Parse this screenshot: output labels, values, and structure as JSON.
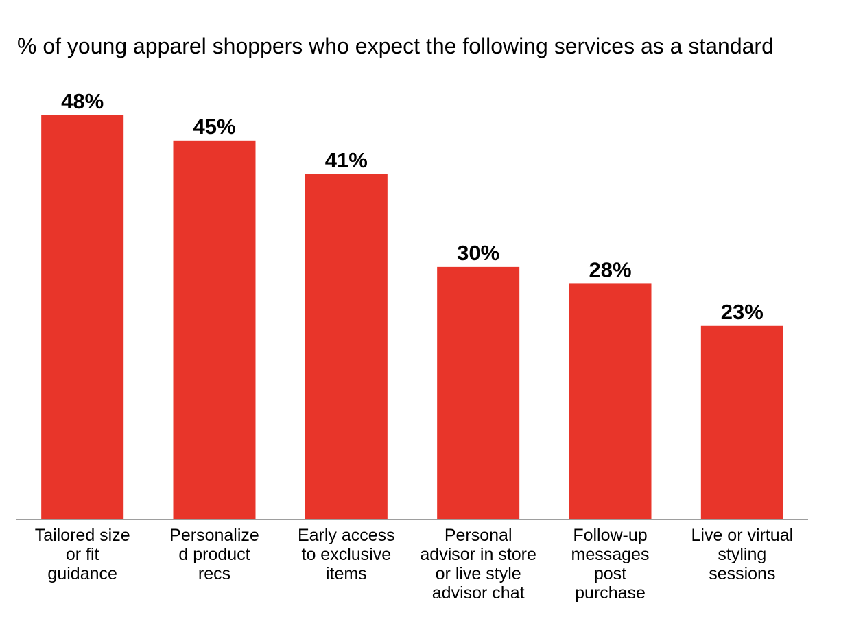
{
  "chart_data": {
    "type": "bar",
    "title": "% of young apparel shoppers who expect the following services as a standard",
    "categories": [
      [
        "Tailored size",
        "or fit",
        "guidance"
      ],
      [
        "Personalize",
        "d product",
        "recs"
      ],
      [
        "Early access",
        "to exclusive",
        "items"
      ],
      [
        "Personal",
        "advisor in store",
        "or live style",
        "advisor chat"
      ],
      [
        "Follow-up",
        "messages",
        "post",
        "purchase"
      ],
      [
        "Live or virtual",
        "styling",
        "sessions"
      ]
    ],
    "values": [
      48,
      45,
      41,
      30,
      28,
      23
    ],
    "value_labels": [
      "48%",
      "45%",
      "41%",
      "30%",
      "28%",
      "23%"
    ],
    "xlabel": "",
    "ylabel": "",
    "ylim": [
      0,
      48
    ],
    "grid": false,
    "bar_color": "#E8352A",
    "axis_color": "#9E9E9E"
  }
}
